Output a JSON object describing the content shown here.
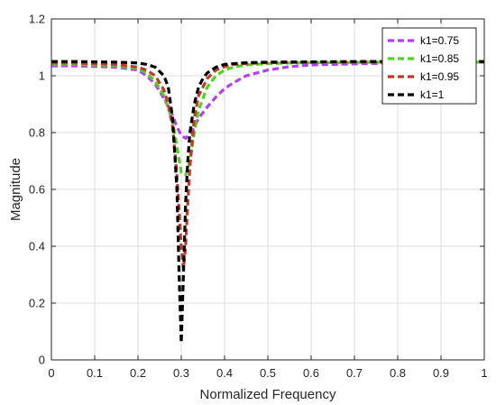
{
  "chart_data": {
    "type": "line",
    "title": "",
    "xlabel": "Normalized Frequency",
    "ylabel": "Magnitude",
    "xlim": [
      0,
      1
    ],
    "ylim": [
      0,
      1.2
    ],
    "xticks": [
      0,
      0.1,
      0.2,
      0.3,
      0.4,
      0.5,
      0.6,
      0.7,
      0.8,
      0.9,
      1
    ],
    "xtick_labels": [
      "0",
      "0.1",
      "0.2",
      "0.3",
      "0.4",
      "0.5",
      "0.6",
      "0.7",
      "0.8",
      "0.9",
      "1"
    ],
    "yticks": [
      0,
      0.2,
      0.4,
      0.6,
      0.8,
      1,
      1.2
    ],
    "ytick_labels": [
      "0",
      "0.2",
      "0.4",
      "0.6",
      "0.8",
      "1",
      "1.2"
    ],
    "grid": true,
    "legend_position": "top-right",
    "series": [
      {
        "name": "k1=0.75",
        "color": "#b040f0",
        "x": [
          0,
          0.05,
          0.1,
          0.15,
          0.2,
          0.22,
          0.24,
          0.26,
          0.28,
          0.29,
          0.3,
          0.31,
          0.32,
          0.33,
          0.34,
          0.36,
          0.38,
          0.4,
          0.42,
          0.45,
          0.5,
          0.55,
          0.6,
          0.7,
          0.8,
          0.9,
          1.0
        ],
        "y": [
          1.035,
          1.035,
          1.033,
          1.03,
          1.02,
          1.0,
          0.97,
          0.92,
          0.86,
          0.82,
          0.79,
          0.78,
          0.795,
          0.82,
          0.85,
          0.89,
          0.925,
          0.955,
          0.975,
          1.0,
          1.02,
          1.032,
          1.038,
          1.042,
          1.045,
          1.047,
          1.048
        ]
      },
      {
        "name": "k1=0.85",
        "color": "#50d020",
        "x": [
          0,
          0.05,
          0.1,
          0.15,
          0.2,
          0.22,
          0.24,
          0.26,
          0.28,
          0.29,
          0.3,
          0.31,
          0.32,
          0.33,
          0.34,
          0.36,
          0.38,
          0.4,
          0.42,
          0.45,
          0.5,
          0.55,
          0.6,
          0.7,
          0.8,
          0.9,
          1.0
        ],
        "y": [
          1.04,
          1.04,
          1.038,
          1.035,
          1.025,
          1.01,
          0.98,
          0.93,
          0.84,
          0.75,
          0.66,
          0.65,
          0.7,
          0.8,
          0.88,
          0.96,
          1.0,
          1.02,
          1.03,
          1.038,
          1.043,
          1.045,
          1.046,
          1.047,
          1.048,
          1.048,
          1.048
        ]
      },
      {
        "name": "k1=0.95",
        "color": "#c03a28",
        "x": [
          0,
          0.05,
          0.1,
          0.15,
          0.2,
          0.22,
          0.24,
          0.26,
          0.27,
          0.28,
          0.29,
          0.3,
          0.305,
          0.31,
          0.315,
          0.32,
          0.33,
          0.34,
          0.36,
          0.38,
          0.4,
          0.42,
          0.45,
          0.5,
          0.6,
          0.7,
          0.8,
          0.9,
          1.0
        ],
        "y": [
          1.045,
          1.045,
          1.043,
          1.04,
          1.03,
          1.02,
          1.0,
          0.95,
          0.9,
          0.82,
          0.65,
          0.4,
          0.32,
          0.4,
          0.55,
          0.68,
          0.85,
          0.93,
          0.99,
          1.02,
          1.032,
          1.04,
          1.043,
          1.046,
          1.047,
          1.048,
          1.048,
          1.048,
          1.048
        ]
      },
      {
        "name": "k1=1",
        "color": "#000000",
        "x": [
          0,
          0.05,
          0.1,
          0.15,
          0.2,
          0.22,
          0.24,
          0.26,
          0.27,
          0.28,
          0.29,
          0.295,
          0.3,
          0.305,
          0.31,
          0.315,
          0.32,
          0.33,
          0.34,
          0.35,
          0.36,
          0.38,
          0.4,
          0.45,
          0.5,
          0.6,
          0.7,
          0.8,
          0.9,
          1.0
        ],
        "y": [
          1.05,
          1.05,
          1.049,
          1.048,
          1.045,
          1.04,
          1.03,
          1.0,
          0.96,
          0.85,
          0.6,
          0.3,
          0.06,
          0.3,
          0.55,
          0.7,
          0.8,
          0.9,
          0.96,
          0.99,
          1.01,
          1.03,
          1.04,
          1.046,
          1.048,
          1.049,
          1.05,
          1.05,
          1.05,
          1.05
        ]
      }
    ]
  }
}
